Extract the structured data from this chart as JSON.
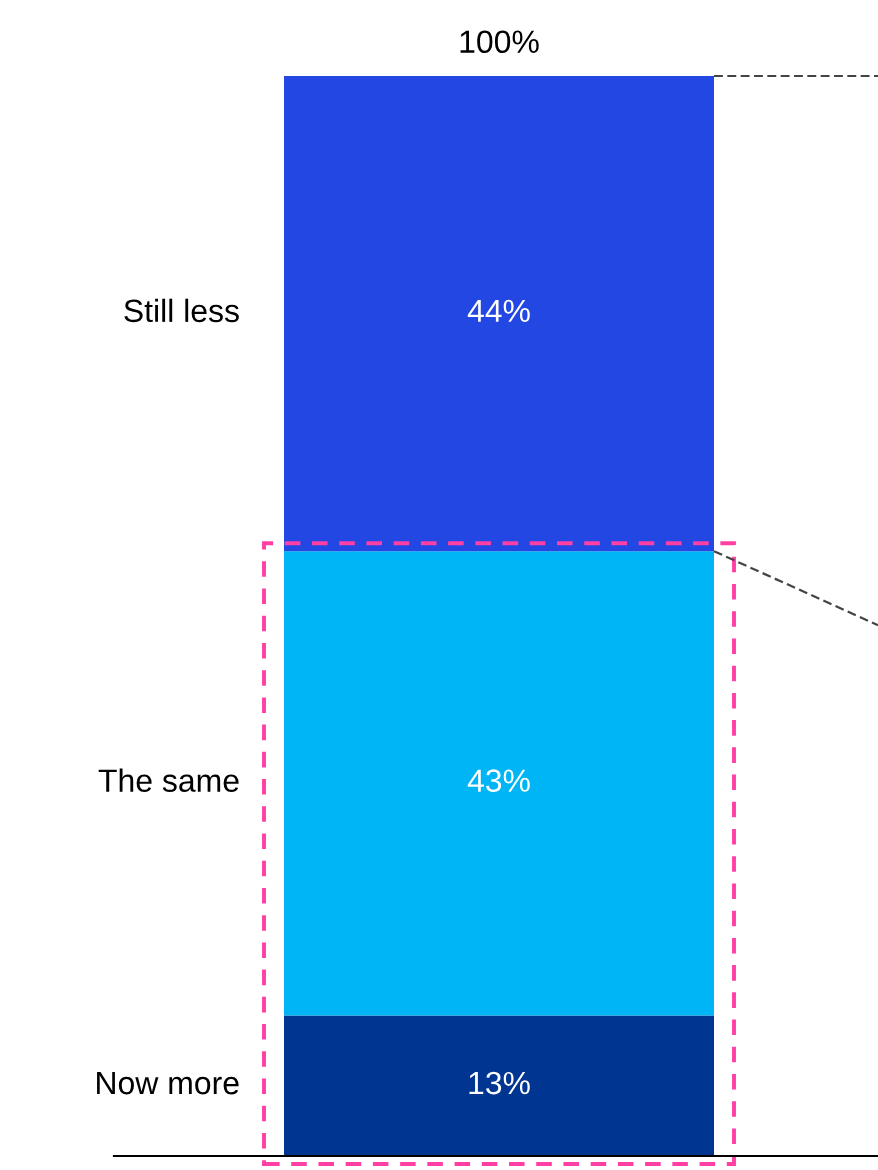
{
  "chart_data": {
    "type": "bar",
    "stacked": true,
    "categories": [
      null
    ],
    "series": [
      {
        "name": "Now more",
        "color": "#003591",
        "values": [
          13
        ],
        "value_labels": [
          "13%"
        ]
      },
      {
        "name": "The same",
        "color": "#00b5f5",
        "values": [
          43
        ],
        "value_labels": [
          "43%"
        ]
      },
      {
        "name": "Still less",
        "color": "#2347e3",
        "values": [
          44
        ],
        "value_labels": [
          "44%"
        ]
      }
    ],
    "totals": [
      "100%"
    ],
    "legend": false,
    "grid": false
  }
}
